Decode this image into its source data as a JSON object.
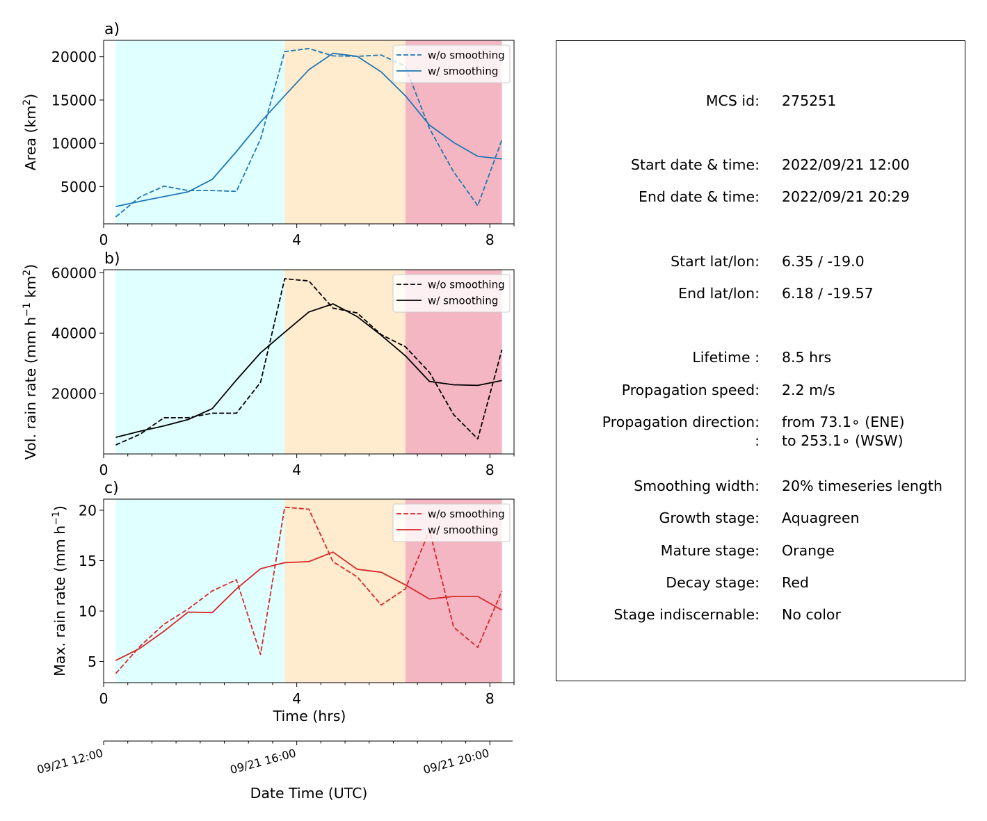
{
  "chart_data": [
    {
      "panel": "a)",
      "type": "line",
      "ylabel": "Area  (km²)",
      "ylabel_base": "Area  (km",
      "ylabel_sup": "2",
      "ylabel_tail": ")",
      "xlim": [
        0,
        8.5
      ],
      "ylim": [
        700,
        21900
      ],
      "xticks": [
        0,
        4,
        8
      ],
      "yticks": [
        5000,
        10000,
        15000,
        20000
      ],
      "legend_position": "top-right",
      "color": "#1f77b4",
      "stages": [
        {
          "name": "growth",
          "from": 0.25,
          "to": 3.75,
          "color": "#e0ffff"
        },
        {
          "name": "mature",
          "from": 3.75,
          "to": 6.25,
          "color": "#ffebcd"
        },
        {
          "name": "decay",
          "from": 6.25,
          "to": 8.25,
          "color": "#f4b6c2"
        }
      ],
      "series": [
        {
          "name": "w/o smoothing",
          "style": "dashed",
          "x": [
            0.25,
            0.75,
            1.25,
            1.75,
            2.25,
            2.75,
            3.25,
            3.75,
            4.25,
            4.75,
            5.25,
            5.75,
            6.25,
            6.75,
            7.25,
            7.75,
            8.25
          ],
          "values": [
            1500,
            3800,
            5050,
            4550,
            4550,
            4450,
            10500,
            20600,
            20950,
            20100,
            20050,
            20200,
            18900,
            11700,
            6700,
            2800,
            10400
          ]
        },
        {
          "name": "w/ smoothing",
          "style": "solid",
          "x": [
            0.25,
            0.75,
            1.25,
            1.75,
            2.25,
            2.75,
            3.25,
            3.75,
            4.25,
            4.75,
            5.25,
            5.75,
            6.25,
            6.75,
            7.25,
            7.75,
            8.25
          ],
          "values": [
            2700,
            3300,
            3850,
            4400,
            5850,
            9050,
            12450,
            15500,
            18500,
            20400,
            20050,
            18250,
            15500,
            12100,
            10100,
            8500,
            8200
          ]
        }
      ]
    },
    {
      "panel": "b)",
      "type": "line",
      "ylabel": "Vol. rain rate (mm h⁻¹ km²)",
      "ylabel_base": "Vol. rain rate (mm h",
      "ylabel_sup1": "−1",
      "ylabel_mid": " km",
      "ylabel_sup2": "2",
      "ylabel_tail": ")",
      "xlim": [
        0,
        8.5
      ],
      "ylim": [
        0,
        61000
      ],
      "xticks": [
        0,
        4,
        8
      ],
      "yticks": [
        20000,
        40000,
        60000
      ],
      "legend_position": "top-right",
      "color": "#000000",
      "stages": [
        {
          "name": "growth",
          "from": 0.25,
          "to": 3.75,
          "color": "#e0ffff"
        },
        {
          "name": "mature",
          "from": 3.75,
          "to": 6.25,
          "color": "#ffebcd"
        },
        {
          "name": "decay",
          "from": 6.25,
          "to": 8.25,
          "color": "#f4b6c2"
        }
      ],
      "series": [
        {
          "name": "w/o smoothing",
          "style": "dashed",
          "x": [
            0.25,
            0.75,
            1.25,
            1.75,
            2.25,
            2.75,
            3.25,
            3.75,
            4.25,
            4.75,
            5.25,
            5.75,
            6.25,
            6.75,
            7.25,
            7.75,
            8.25
          ],
          "values": [
            3000,
            6500,
            12000,
            12000,
            13500,
            13500,
            23700,
            58000,
            57300,
            48300,
            46700,
            39500,
            35500,
            27000,
            13000,
            5000,
            34500
          ]
        },
        {
          "name": "w/ smoothing",
          "style": "solid",
          "x": [
            0.25,
            0.75,
            1.25,
            1.75,
            2.25,
            2.75,
            3.25,
            3.75,
            4.25,
            4.75,
            5.25,
            5.75,
            6.25,
            6.75,
            7.25,
            7.75,
            8.25
          ],
          "values": [
            5500,
            7500,
            9300,
            11400,
            15000,
            24500,
            33500,
            40300,
            47000,
            49700,
            45500,
            39300,
            32500,
            24000,
            22900,
            22700,
            24300
          ]
        }
      ]
    },
    {
      "panel": "c)",
      "type": "line",
      "ylabel": "Max. rain rate  (mm h⁻¹)",
      "ylabel_base": "Max. rain rate  (mm h",
      "ylabel_sup": "−1",
      "ylabel_tail": ")",
      "xlabel": "Time (hrs)",
      "xlim": [
        0,
        8.5
      ],
      "ylim": [
        2.9,
        21.1
      ],
      "xticks": [
        0,
        4,
        8
      ],
      "yticks": [
        5,
        10,
        15,
        20
      ],
      "legend_position": "top-right",
      "color": "#d62728",
      "stages": [
        {
          "name": "growth",
          "from": 0.25,
          "to": 3.75,
          "color": "#e0ffff"
        },
        {
          "name": "mature",
          "from": 3.75,
          "to": 6.25,
          "color": "#ffebcd"
        },
        {
          "name": "decay",
          "from": 6.25,
          "to": 8.25,
          "color": "#f4b6c2"
        }
      ],
      "series": [
        {
          "name": "w/o smoothing",
          "style": "dashed",
          "x": [
            0.25,
            0.75,
            1.25,
            1.75,
            2.25,
            2.75,
            3.25,
            3.75,
            4.25,
            4.75,
            5.25,
            5.75,
            6.25,
            6.75,
            7.25,
            7.75,
            8.25
          ],
          "values": [
            3.8,
            6.5,
            8.7,
            10.2,
            12.0,
            13.1,
            5.7,
            20.3,
            20.1,
            14.9,
            13.4,
            10.6,
            12.2,
            18.0,
            8.4,
            6.4,
            12.0
          ]
        },
        {
          "name": "w/ smoothing",
          "style": "solid",
          "x": [
            0.25,
            0.75,
            1.25,
            1.75,
            2.25,
            2.75,
            3.25,
            3.75,
            4.25,
            4.75,
            5.25,
            5.75,
            6.25,
            6.75,
            7.25,
            7.75,
            8.25
          ],
          "values": [
            5.1,
            6.3,
            8.0,
            9.9,
            9.85,
            12.2,
            14.2,
            14.8,
            14.9,
            15.85,
            14.15,
            13.85,
            12.6,
            11.2,
            11.45,
            11.45,
            10.1
          ]
        }
      ]
    }
  ],
  "datetime_axis": {
    "label": "Date Time (UTC)",
    "xlim": [
      0,
      8.5
    ],
    "ticks": [
      {
        "x": 0,
        "label": "09/21 12:00"
      },
      {
        "x": 4,
        "label": "09/21 16:00"
      },
      {
        "x": 8,
        "label": "09/21 20:00"
      }
    ]
  },
  "info": {
    "rows": [
      {
        "label": "MCS id:",
        "value": "275251"
      },
      {
        "label": "Start date & time:",
        "value": "2022/09/21 12:00"
      },
      {
        "label": "End date & time:",
        "value": "2022/09/21 20:29"
      },
      {
        "label": "Start lat/lon:",
        "value": "6.35 / -19.0"
      },
      {
        "label": "End lat/lon:",
        "value": "6.18 / -19.57"
      },
      {
        "label": "Lifetime :",
        "value": "8.5 hrs"
      },
      {
        "label": "Propagation speed:",
        "value": "2.2 m/s"
      },
      {
        "label": "Propagation direction:",
        "value": "from  73.1∘ (ENE)"
      },
      {
        "label": ":",
        "value": "to   253.1∘ (WSW)"
      },
      {
        "label": "Smoothing width:",
        "value": "20% timeseries length"
      },
      {
        "label": "Growth stage:",
        "value": "Aquagreen"
      },
      {
        "label": "Mature stage:",
        "value": "Orange"
      },
      {
        "label": "Decay stage:",
        "value": "Red"
      },
      {
        "label": "Stage indiscernable:",
        "value": "No color"
      }
    ]
  }
}
